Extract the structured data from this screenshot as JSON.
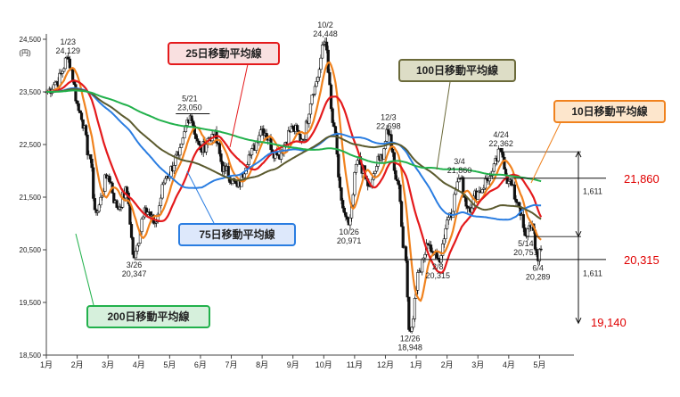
{
  "chart_data": {
    "type": "line",
    "unit": "(円)",
    "y_ticks": [
      "18,500",
      "19,500",
      "20,500",
      "21,500",
      "22,500",
      "23,500",
      "24,500"
    ],
    "ylim": [
      18500,
      24500
    ],
    "x_ticks": [
      "1月",
      "2月",
      "3月",
      "4月",
      "5月",
      "6月",
      "7月",
      "8月",
      "9月",
      "10月",
      "11月",
      "12月",
      "1月",
      "2月",
      "3月",
      "4月",
      "5月"
    ],
    "price_anchors": [
      {
        "t": 0.0,
        "v": 23500
      },
      {
        "t": 0.35,
        "v": 23700
      },
      {
        "t": 0.7,
        "v": 24129
      },
      {
        "t": 1.1,
        "v": 23100
      },
      {
        "t": 1.4,
        "v": 22300
      },
      {
        "t": 1.6,
        "v": 21200
      },
      {
        "t": 2.0,
        "v": 21900
      },
      {
        "t": 2.3,
        "v": 21300
      },
      {
        "t": 2.6,
        "v": 21600
      },
      {
        "t": 2.85,
        "v": 20347
      },
      {
        "t": 3.2,
        "v": 21300
      },
      {
        "t": 3.5,
        "v": 21000
      },
      {
        "t": 3.9,
        "v": 21900
      },
      {
        "t": 4.3,
        "v": 22300
      },
      {
        "t": 4.65,
        "v": 23050
      },
      {
        "t": 5.0,
        "v": 22400
      },
      {
        "t": 5.4,
        "v": 22700
      },
      {
        "t": 5.8,
        "v": 22000
      },
      {
        "t": 6.2,
        "v": 21700
      },
      {
        "t": 6.6,
        "v": 22300
      },
      {
        "t": 7.0,
        "v": 22800
      },
      {
        "t": 7.5,
        "v": 22300
      },
      {
        "t": 8.0,
        "v": 22800
      },
      {
        "t": 8.3,
        "v": 22600
      },
      {
        "t": 8.7,
        "v": 23600
      },
      {
        "t": 9.05,
        "v": 24448
      },
      {
        "t": 9.3,
        "v": 22900
      },
      {
        "t": 9.6,
        "v": 21300
      },
      {
        "t": 9.82,
        "v": 20971
      },
      {
        "t": 10.1,
        "v": 22200
      },
      {
        "t": 10.5,
        "v": 21700
      },
      {
        "t": 10.8,
        "v": 22200
      },
      {
        "t": 11.1,
        "v": 22698
      },
      {
        "t": 11.4,
        "v": 21800
      },
      {
        "t": 11.6,
        "v": 20600
      },
      {
        "t": 11.8,
        "v": 18948
      },
      {
        "t": 12.1,
        "v": 20100
      },
      {
        "t": 12.4,
        "v": 20600
      },
      {
        "t": 12.7,
        "v": 20315
      },
      {
        "t": 13.1,
        "v": 21200
      },
      {
        "t": 13.4,
        "v": 21860
      },
      {
        "t": 13.7,
        "v": 21300
      },
      {
        "t": 14.0,
        "v": 21600
      },
      {
        "t": 14.4,
        "v": 21900
      },
      {
        "t": 14.75,
        "v": 22362
      },
      {
        "t": 15.0,
        "v": 21800
      },
      {
        "t": 15.3,
        "v": 21400
      },
      {
        "t": 15.55,
        "v": 20751
      },
      {
        "t": 15.75,
        "v": 21000
      },
      {
        "t": 15.95,
        "v": 20289
      },
      {
        "t": 16.05,
        "v": 20500
      }
    ],
    "series": [
      {
        "name": "10日移動平均線",
        "color": "#f0821e",
        "width": 2.2,
        "window": 10
      },
      {
        "name": "25日移動平均線",
        "color": "#e41a1c",
        "width": 2.2,
        "window": 25
      },
      {
        "name": "75日移動平均線",
        "color": "#2a7de1",
        "width": 2.0,
        "window": 75
      },
      {
        "name": "100日移動平均線",
        "color": "#5b5a2e",
        "width": 2.0,
        "window": 100
      },
      {
        "name": "200日移動平均線",
        "color": "#22b14c",
        "width": 2.0,
        "window": 200
      }
    ],
    "annotations": [
      {
        "date": "1/23",
        "value": "24,129",
        "t": 0.7,
        "v": 24129,
        "pos": "above"
      },
      {
        "date": "5/21",
        "value": "23,050",
        "t": 4.65,
        "v": 23050,
        "pos": "above"
      },
      {
        "date": "10/2",
        "value": "24,448",
        "t": 9.05,
        "v": 24448,
        "pos": "above"
      },
      {
        "date": "12/3",
        "value": "22,698",
        "t": 11.1,
        "v": 22698,
        "pos": "above"
      },
      {
        "date": "3/4",
        "value": "21,860",
        "t": 13.4,
        "v": 21860,
        "pos": "above"
      },
      {
        "date": "4/24",
        "value": "22,362",
        "t": 14.75,
        "v": 22362,
        "pos": "above"
      },
      {
        "date": "3/26",
        "value": "20,347",
        "t": 2.85,
        "v": 20347,
        "pos": "below"
      },
      {
        "date": "10/26",
        "value": "20,971",
        "t": 9.82,
        "v": 20971,
        "pos": "below"
      },
      {
        "date": "12/26",
        "value": "18,948",
        "t": 11.8,
        "v": 18948,
        "pos": "below"
      },
      {
        "date": "2/8",
        "value": "20,315",
        "t": 12.7,
        "v": 20315,
        "pos": "below"
      },
      {
        "date": "5/14",
        "value": "20,751",
        "t": 15.55,
        "v": 20751,
        "pos": "below"
      },
      {
        "date": "6/4",
        "value": "20,289",
        "t": 15.95,
        "v": 20289,
        "pos": "below"
      }
    ],
    "levels": [
      {
        "label": "21,860",
        "value": 21860
      },
      {
        "label": "20,315",
        "value": 20315
      },
      {
        "label": "19,140",
        "value": 19140
      }
    ],
    "gap_labels": [
      "1,611",
      "1,611"
    ],
    "ma_labels": {
      "ma25": "25日移動平均線",
      "ma100": "100日移動平均線",
      "ma10": "10日移動平均線",
      "ma75": "75日移動平均線",
      "ma200": "200日移動平均線"
    },
    "grid": false,
    "legend": "callout labels"
  }
}
